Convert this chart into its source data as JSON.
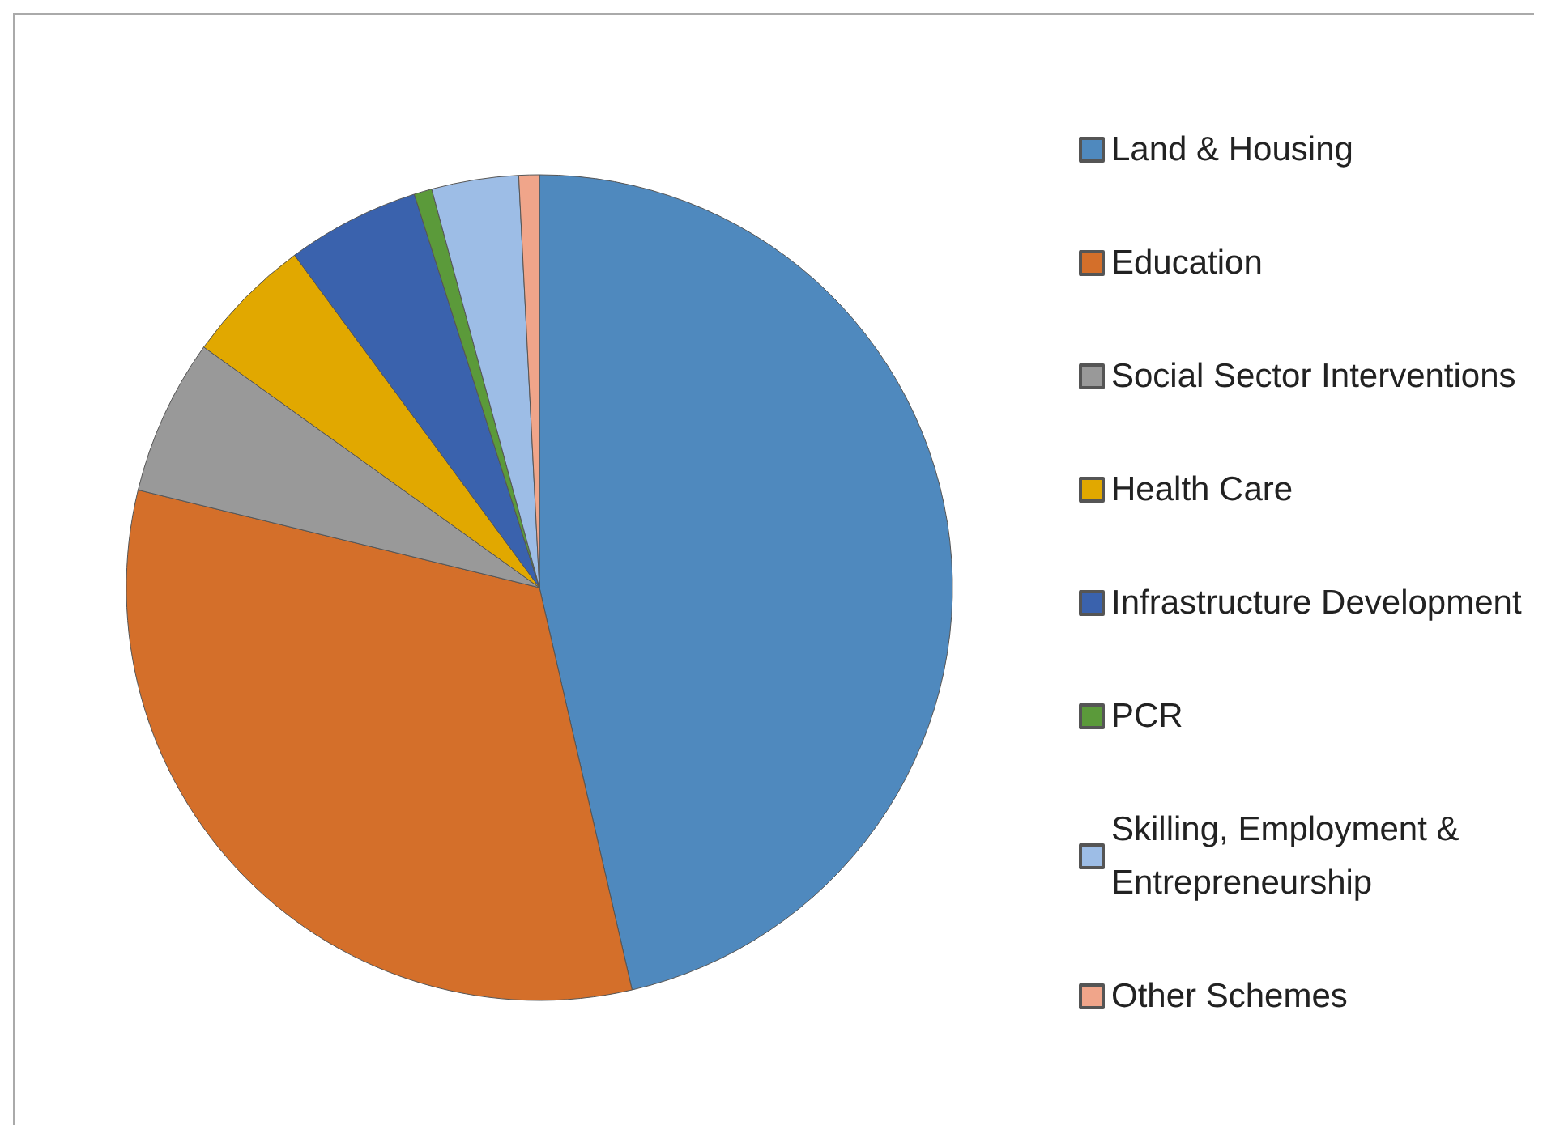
{
  "chart_data": {
    "type": "pie",
    "categories": [
      "Land & Housing",
      "Education",
      "Social Sector Interventions",
      "Health Care",
      "Infrastructure Development",
      "PCR",
      "Skilling, Employment & Entrepreneurship",
      "Other Schemes"
    ],
    "values": [
      46.4,
      32.4,
      6.1,
      5.0,
      5.2,
      0.7,
      3.4,
      0.8
    ],
    "colors": [
      "#4f89be",
      "#d46f2a",
      "#999999",
      "#e1a800",
      "#3a62ad",
      "#5b9a3a",
      "#9dbde6",
      "#f0a58a"
    ],
    "legend": "right"
  }
}
